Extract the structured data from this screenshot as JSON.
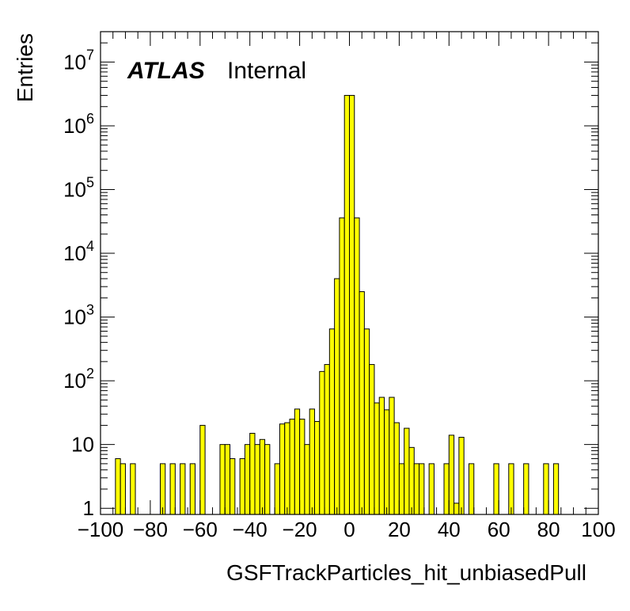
{
  "chart_data": {
    "type": "bar",
    "subtype": "histogram",
    "xlabel": "GSFTrackParticles_hit_unbiasedPull",
    "ylabel": "Entries",
    "annotation": {
      "brand": "ATLAS",
      "status": "Internal"
    },
    "xlim": [
      -100,
      100
    ],
    "ylim": [
      0.8,
      30000000
    ],
    "yscale": "log",
    "bin_width": 2,
    "x_ticks": [
      -100,
      -80,
      -60,
      -40,
      -20,
      0,
      20,
      40,
      60,
      80,
      100
    ],
    "x_tick_labels": [
      "−100",
      "−80",
      "−60",
      "−40",
      "−20",
      "0",
      "20",
      "40",
      "60",
      "80",
      "100"
    ],
    "y_ticks": [
      1,
      10,
      100,
      1000,
      10000,
      100000,
      1000000,
      10000000
    ],
    "y_tick_labels": [
      {
        "base": "1",
        "exp": ""
      },
      {
        "base": "10",
        "exp": ""
      },
      {
        "base": "10",
        "exp": "2"
      },
      {
        "base": "10",
        "exp": "3"
      },
      {
        "base": "10",
        "exp": "4"
      },
      {
        "base": "10",
        "exp": "5"
      },
      {
        "base": "10",
        "exp": "6"
      },
      {
        "base": "10",
        "exp": "7"
      }
    ],
    "fill_color": "#ffff00",
    "edge_color": "#000000",
    "bins": [
      {
        "x": -94,
        "count": 6
      },
      {
        "x": -92,
        "count": 5
      },
      {
        "x": -88,
        "count": 5
      },
      {
        "x": -76,
        "count": 5
      },
      {
        "x": -72,
        "count": 5
      },
      {
        "x": -68,
        "count": 5
      },
      {
        "x": -64,
        "count": 5
      },
      {
        "x": -60,
        "count": 20
      },
      {
        "x": -52,
        "count": 10
      },
      {
        "x": -50,
        "count": 10
      },
      {
        "x": -48,
        "count": 6
      },
      {
        "x": -44,
        "count": 6
      },
      {
        "x": -42,
        "count": 10
      },
      {
        "x": -40,
        "count": 15
      },
      {
        "x": -38,
        "count": 10
      },
      {
        "x": -36,
        "count": 12
      },
      {
        "x": -34,
        "count": 10
      },
      {
        "x": -30,
        "count": 5
      },
      {
        "x": -28,
        "count": 21
      },
      {
        "x": -26,
        "count": 22
      },
      {
        "x": -24,
        "count": 25
      },
      {
        "x": -22,
        "count": 36
      },
      {
        "x": -20,
        "count": 25
      },
      {
        "x": -18,
        "count": 10
      },
      {
        "x": -16,
        "count": 36
      },
      {
        "x": -14,
        "count": 23
      },
      {
        "x": -12,
        "count": 140
      },
      {
        "x": -10,
        "count": 180
      },
      {
        "x": -8,
        "count": 650
      },
      {
        "x": -6,
        "count": 4000
      },
      {
        "x": -4,
        "count": 36000
      },
      {
        "x": -2,
        "count": 3000000
      },
      {
        "x": 0,
        "count": 3000000
      },
      {
        "x": 2,
        "count": 36000
      },
      {
        "x": 4,
        "count": 2500
      },
      {
        "x": 6,
        "count": 650
      },
      {
        "x": 8,
        "count": 180
      },
      {
        "x": 10,
        "count": 45
      },
      {
        "x": 12,
        "count": 55
      },
      {
        "x": 14,
        "count": 35
      },
      {
        "x": 16,
        "count": 55
      },
      {
        "x": 18,
        "count": 22
      },
      {
        "x": 20,
        "count": 5
      },
      {
        "x": 22,
        "count": 18
      },
      {
        "x": 24,
        "count": 9
      },
      {
        "x": 26,
        "count": 5
      },
      {
        "x": 28,
        "count": 5
      },
      {
        "x": 32,
        "count": 5
      },
      {
        "x": 38,
        "count": 5
      },
      {
        "x": 40,
        "count": 14
      },
      {
        "x": 42,
        "count": 1.2
      },
      {
        "x": 44,
        "count": 13
      },
      {
        "x": 48,
        "count": 5
      },
      {
        "x": 58,
        "count": 5
      },
      {
        "x": 64,
        "count": 5
      },
      {
        "x": 70,
        "count": 5
      },
      {
        "x": 78,
        "count": 5
      },
      {
        "x": 82,
        "count": 5
      }
    ]
  }
}
